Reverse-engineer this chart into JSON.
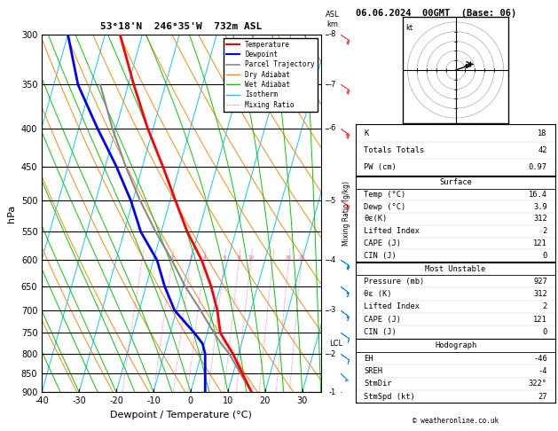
{
  "title_left": "53°18'N  246°35'W  732m ASL",
  "title_right": "06.06.2024  00GMT  (Base: 06)",
  "xlabel": "Dewpoint / Temperature (°C)",
  "bg_color": "#ffffff",
  "plot_bg": "#ffffff",
  "isotherm_color": "#00ccff",
  "dry_adiabat_color": "#ff8800",
  "wet_adiabat_color": "#00cc00",
  "mixing_ratio_color": "#ff44aa",
  "temp_profile_color": "#ff0000",
  "dewp_profile_color": "#0000ff",
  "parcel_color": "#888888",
  "pressure_levels": [
    300,
    350,
    400,
    450,
    500,
    550,
    600,
    650,
    700,
    750,
    800,
    850,
    900
  ],
  "temp_ticks": [
    -40,
    -30,
    -20,
    -10,
    0,
    10,
    20,
    30
  ],
  "km_ticks": [
    1,
    2,
    3,
    4,
    5,
    6,
    7,
    8
  ],
  "km_pressures": [
    900,
    800,
    700,
    600,
    500,
    400,
    350,
    300
  ],
  "lcl_pressure": 775,
  "table_K": 18,
  "table_TT": 42,
  "table_PW": 0.97,
  "surface_temp": 16.4,
  "surface_dewp": 3.9,
  "surface_theta_e": 312,
  "surface_li": 2,
  "surface_cape": 121,
  "surface_cin": 0,
  "mu_pressure": 927,
  "mu_theta_e": 312,
  "mu_li": 2,
  "mu_cape": 121,
  "mu_cin": 0,
  "hodo_EH": -46,
  "hodo_SREH": -4,
  "hodo_StmDir": 322,
  "hodo_StmSpd": 27,
  "copyright": "© weatheronline.co.uk",
  "temp_p": [
    900,
    850,
    800,
    775,
    750,
    700,
    650,
    600,
    550,
    500,
    450,
    400,
    350,
    300
  ],
  "temp_T": [
    16.4,
    12.5,
    8.5,
    6.0,
    3.5,
    1.0,
    -2.5,
    -7.0,
    -13.0,
    -18.5,
    -24.5,
    -31.5,
    -38.5,
    -46.0
  ],
  "dewp_p": [
    900,
    850,
    800,
    775,
    750,
    700,
    650,
    600,
    550,
    500,
    450,
    400,
    350,
    300
  ],
  "dewp_T": [
    3.9,
    2.5,
    1.0,
    -0.5,
    -3.5,
    -10.5,
    -15.0,
    -19.0,
    -25.5,
    -30.5,
    -37.0,
    -45.0,
    -53.5,
    -60.0
  ],
  "parcel_p": [
    900,
    850,
    800,
    775,
    750,
    700,
    650,
    600,
    550,
    500,
    450,
    400,
    350
  ],
  "parcel_T": [
    16.4,
    12.0,
    7.5,
    4.5,
    1.8,
    -3.5,
    -9.5,
    -15.0,
    -21.5,
    -28.0,
    -34.5,
    -41.0,
    -47.5
  ],
  "barb_pressures_low": [
    900,
    850,
    800,
    750,
    700,
    650,
    600
  ],
  "barb_u_low": [
    -3,
    -5,
    -7,
    -10,
    -12,
    -13,
    -15
  ],
  "barb_v_low": [
    3,
    5,
    5,
    7,
    9,
    10,
    10
  ],
  "barb_pressures_high": [
    500,
    400,
    350,
    300
  ],
  "barb_u_high": [
    -18,
    -20,
    -18,
    -15
  ],
  "barb_v_high": [
    12,
    14,
    12,
    10
  ]
}
